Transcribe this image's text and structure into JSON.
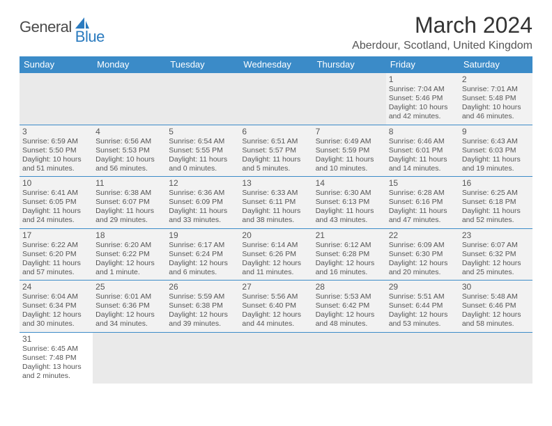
{
  "logo": {
    "part1": "General",
    "part2": "Blue"
  },
  "title": "March 2024",
  "location": "Aberdour, Scotland, United Kingdom",
  "colors": {
    "header_bg": "#3b8bc8",
    "header_text": "#ffffff",
    "cell_bg": "#f2f2f2",
    "blank_bg": "#eaeaea",
    "border": "#3b8bc8",
    "text": "#555555",
    "title_text": "#333333",
    "logo_gray": "#4a4a4a",
    "logo_blue": "#2b7bbf"
  },
  "typography": {
    "title_fontsize": 32,
    "location_fontsize": 16,
    "header_fontsize": 13,
    "daynum_fontsize": 12,
    "info_fontsize": 10.5,
    "logo_fontsize": 22
  },
  "weekdays": [
    "Sunday",
    "Monday",
    "Tuesday",
    "Wednesday",
    "Thursday",
    "Friday",
    "Saturday"
  ],
  "weeks": [
    [
      null,
      null,
      null,
      null,
      null,
      {
        "d": "1",
        "sr": "7:04 AM",
        "ss": "5:46 PM",
        "dl": "10 hours and 42 minutes."
      },
      {
        "d": "2",
        "sr": "7:01 AM",
        "ss": "5:48 PM",
        "dl": "10 hours and 46 minutes."
      }
    ],
    [
      {
        "d": "3",
        "sr": "6:59 AM",
        "ss": "5:50 PM",
        "dl": "10 hours and 51 minutes."
      },
      {
        "d": "4",
        "sr": "6:56 AM",
        "ss": "5:53 PM",
        "dl": "10 hours and 56 minutes."
      },
      {
        "d": "5",
        "sr": "6:54 AM",
        "ss": "5:55 PM",
        "dl": "11 hours and 0 minutes."
      },
      {
        "d": "6",
        "sr": "6:51 AM",
        "ss": "5:57 PM",
        "dl": "11 hours and 5 minutes."
      },
      {
        "d": "7",
        "sr": "6:49 AM",
        "ss": "5:59 PM",
        "dl": "11 hours and 10 minutes."
      },
      {
        "d": "8",
        "sr": "6:46 AM",
        "ss": "6:01 PM",
        "dl": "11 hours and 14 minutes."
      },
      {
        "d": "9",
        "sr": "6:43 AM",
        "ss": "6:03 PM",
        "dl": "11 hours and 19 minutes."
      }
    ],
    [
      {
        "d": "10",
        "sr": "6:41 AM",
        "ss": "6:05 PM",
        "dl": "11 hours and 24 minutes."
      },
      {
        "d": "11",
        "sr": "6:38 AM",
        "ss": "6:07 PM",
        "dl": "11 hours and 29 minutes."
      },
      {
        "d": "12",
        "sr": "6:36 AM",
        "ss": "6:09 PM",
        "dl": "11 hours and 33 minutes."
      },
      {
        "d": "13",
        "sr": "6:33 AM",
        "ss": "6:11 PM",
        "dl": "11 hours and 38 minutes."
      },
      {
        "d": "14",
        "sr": "6:30 AM",
        "ss": "6:13 PM",
        "dl": "11 hours and 43 minutes."
      },
      {
        "d": "15",
        "sr": "6:28 AM",
        "ss": "6:16 PM",
        "dl": "11 hours and 47 minutes."
      },
      {
        "d": "16",
        "sr": "6:25 AM",
        "ss": "6:18 PM",
        "dl": "11 hours and 52 minutes."
      }
    ],
    [
      {
        "d": "17",
        "sr": "6:22 AM",
        "ss": "6:20 PM",
        "dl": "11 hours and 57 minutes."
      },
      {
        "d": "18",
        "sr": "6:20 AM",
        "ss": "6:22 PM",
        "dl": "12 hours and 1 minute."
      },
      {
        "d": "19",
        "sr": "6:17 AM",
        "ss": "6:24 PM",
        "dl": "12 hours and 6 minutes."
      },
      {
        "d": "20",
        "sr": "6:14 AM",
        "ss": "6:26 PM",
        "dl": "12 hours and 11 minutes."
      },
      {
        "d": "21",
        "sr": "6:12 AM",
        "ss": "6:28 PM",
        "dl": "12 hours and 16 minutes."
      },
      {
        "d": "22",
        "sr": "6:09 AM",
        "ss": "6:30 PM",
        "dl": "12 hours and 20 minutes."
      },
      {
        "d": "23",
        "sr": "6:07 AM",
        "ss": "6:32 PM",
        "dl": "12 hours and 25 minutes."
      }
    ],
    [
      {
        "d": "24",
        "sr": "6:04 AM",
        "ss": "6:34 PM",
        "dl": "12 hours and 30 minutes."
      },
      {
        "d": "25",
        "sr": "6:01 AM",
        "ss": "6:36 PM",
        "dl": "12 hours and 34 minutes."
      },
      {
        "d": "26",
        "sr": "5:59 AM",
        "ss": "6:38 PM",
        "dl": "12 hours and 39 minutes."
      },
      {
        "d": "27",
        "sr": "5:56 AM",
        "ss": "6:40 PM",
        "dl": "12 hours and 44 minutes."
      },
      {
        "d": "28",
        "sr": "5:53 AM",
        "ss": "6:42 PM",
        "dl": "12 hours and 48 minutes."
      },
      {
        "d": "29",
        "sr": "5:51 AM",
        "ss": "6:44 PM",
        "dl": "12 hours and 53 minutes."
      },
      {
        "d": "30",
        "sr": "5:48 AM",
        "ss": "6:46 PM",
        "dl": "12 hours and 58 minutes."
      }
    ],
    [
      {
        "d": "31",
        "sr": "6:45 AM",
        "ss": "7:48 PM",
        "dl": "13 hours and 2 minutes."
      },
      null,
      null,
      null,
      null,
      null,
      null
    ]
  ],
  "labels": {
    "sunrise": "Sunrise:",
    "sunset": "Sunset:",
    "daylight": "Daylight:"
  }
}
